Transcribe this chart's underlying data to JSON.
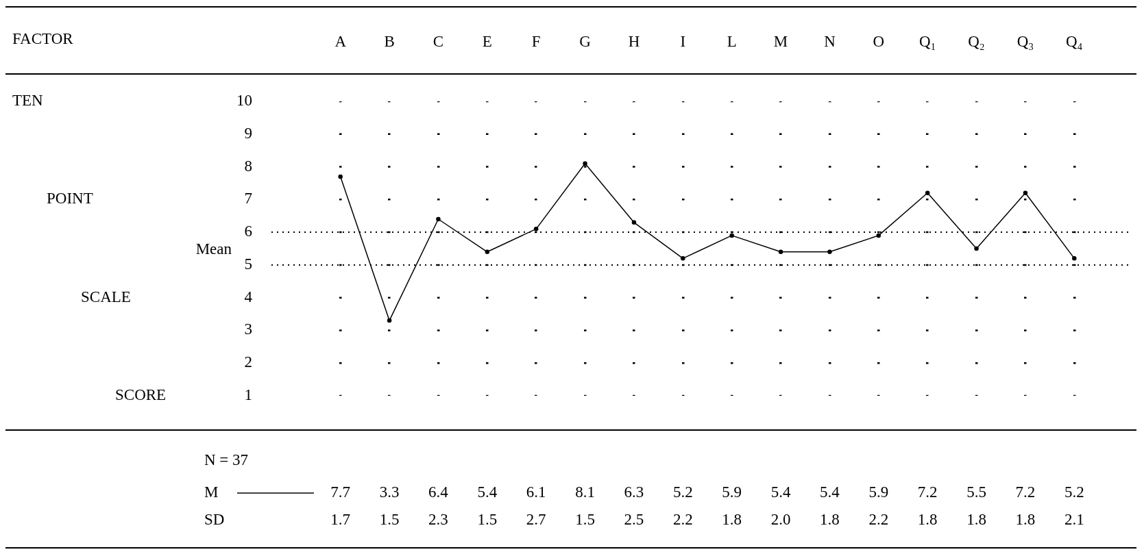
{
  "chart_data": {
    "type": "line",
    "ylabel": "TEN POINT SCALE SCORE",
    "categories": [
      "A",
      "B",
      "C",
      "E",
      "F",
      "G",
      "H",
      "I",
      "L",
      "M",
      "N",
      "O",
      "Q₁",
      "Q₂",
      "Q₃",
      "Q₄"
    ],
    "series": [
      {
        "name": "M",
        "color": "#000000",
        "values": [
          7.7,
          3.3,
          6.4,
          5.4,
          6.1,
          8.1,
          6.3,
          5.2,
          5.9,
          5.4,
          5.4,
          5.9,
          7.2,
          5.5,
          7.2,
          5.2
        ]
      }
    ],
    "ylim": [
      1,
      10
    ],
    "yticks": [
      1,
      2,
      3,
      4,
      5,
      6,
      7,
      8,
      9,
      10
    ],
    "ref_lines": [
      {
        "axis": "y",
        "value": 6,
        "line_style": "dotted"
      },
      {
        "axis": "y",
        "value": 5,
        "label": "Mean",
        "line_style": "dotted"
      }
    ],
    "grid": "x",
    "marker": "circle",
    "line_style": "solid",
    "legend": "bottom",
    "data_labels": true,
    "annotations": [
      "FACTOR",
      "N = 37",
      "SD 1.7 1.5 2.3 1.5 2.7 1.5 2.5 2.2 1.8 2.0 1.8 2.2 1.8 1.8 1.8 2.1"
    ]
  }
}
